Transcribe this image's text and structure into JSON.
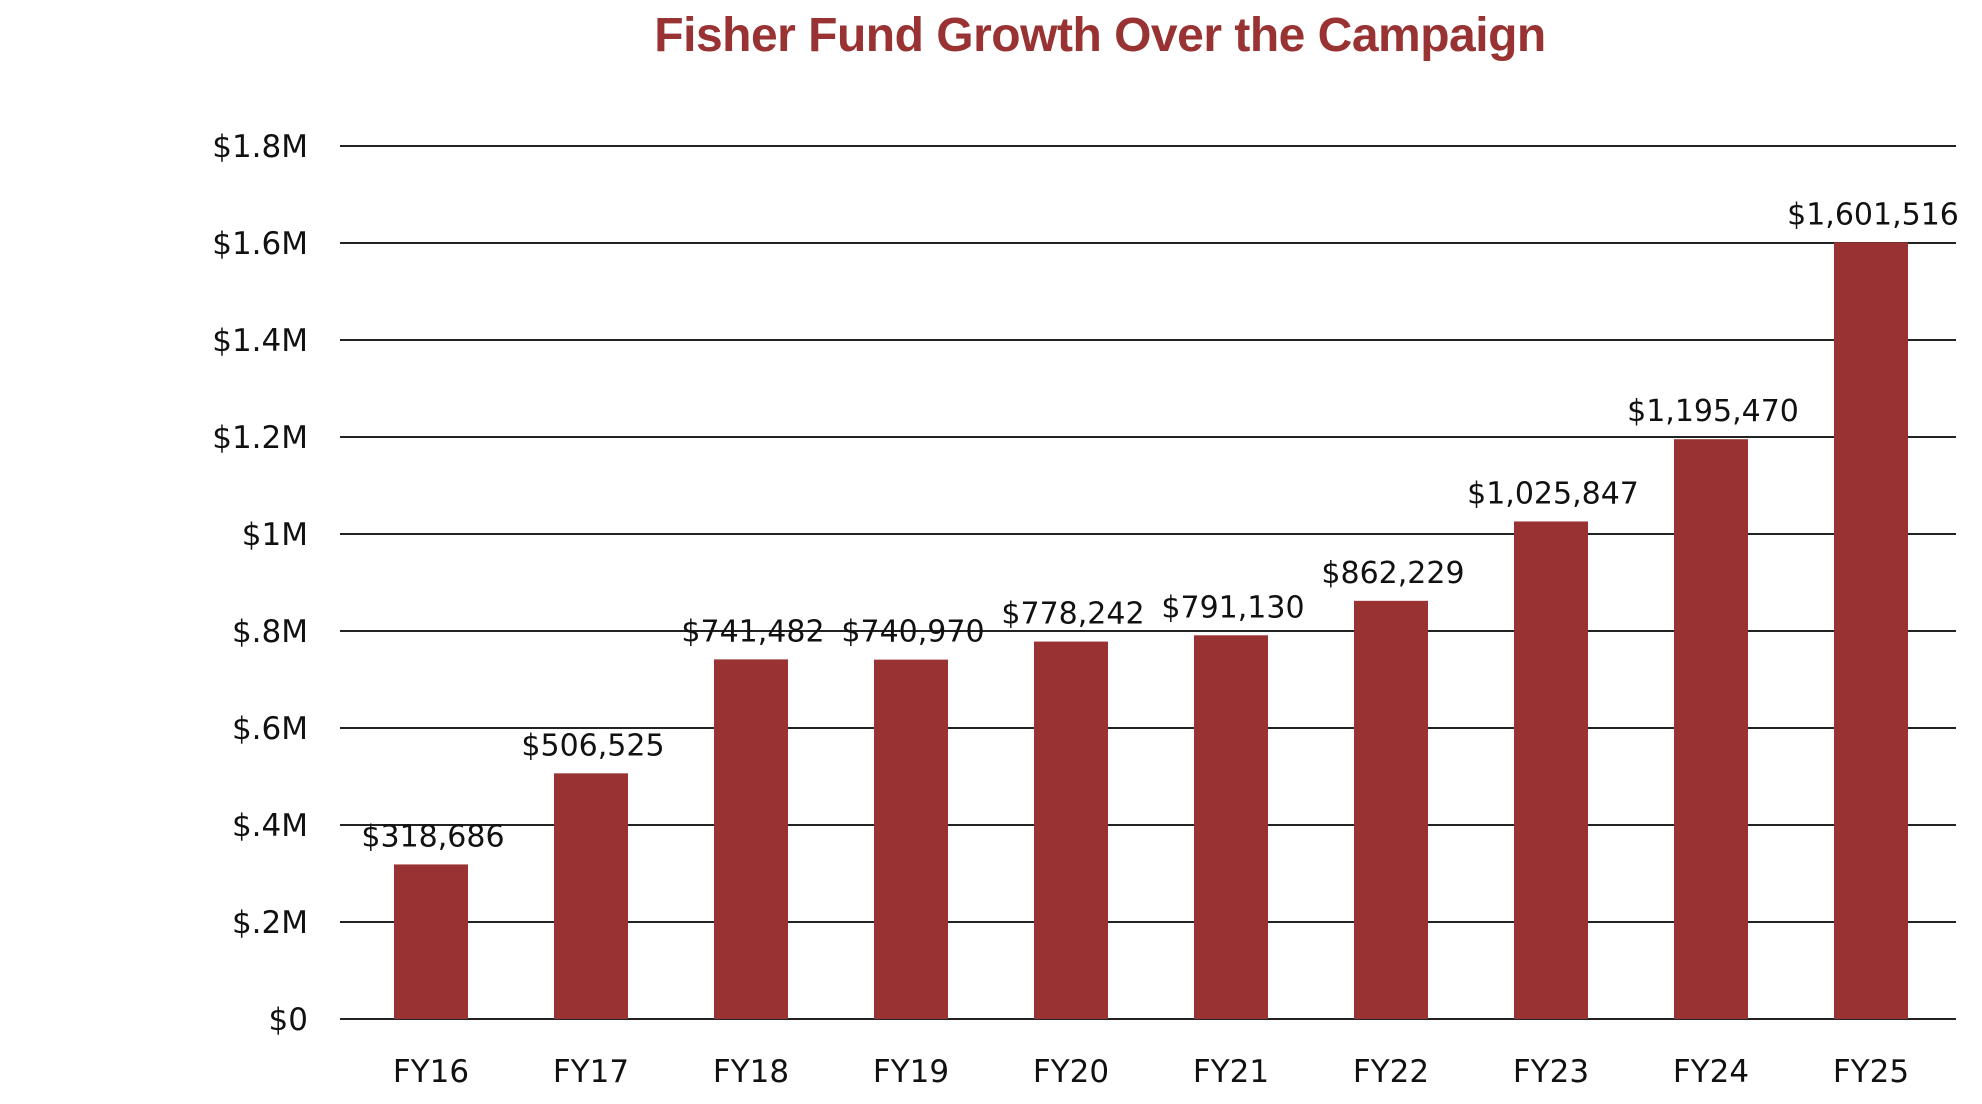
{
  "chart_data": {
    "type": "bar",
    "title": "Fisher Fund Growth Over the Campaign",
    "xlabel": "",
    "ylabel": "",
    "categories": [
      "FY16",
      "FY17",
      "FY18",
      "FY19",
      "FY20",
      "FY21",
      "FY22",
      "FY23",
      "FY24",
      "FY25"
    ],
    "values": [
      318686,
      506525,
      741482,
      740970,
      778242,
      791130,
      862229,
      1025847,
      1195470,
      1601516
    ],
    "value_labels": [
      "$318,686",
      "$506,525",
      "$741,482",
      "$740,970",
      "$778,242",
      "$791,130",
      "$862,229",
      "$1,025,847",
      "$1,195,470",
      "$1,601,516"
    ],
    "ylim": [
      0,
      1800000
    ],
    "yticks": [
      0,
      200000,
      400000,
      600000,
      800000,
      1000000,
      1200000,
      1400000,
      1600000,
      1800000
    ],
    "ytick_labels": [
      "$0",
      "$.2M",
      "$.4M",
      "$.6M",
      "$.8M",
      "$1M",
      "$1.2M",
      "$1.4M",
      "$1.6M",
      "$1.8M"
    ],
    "grid": true,
    "legend": "none",
    "bar_color": "#993333",
    "title_color": "#993333"
  }
}
